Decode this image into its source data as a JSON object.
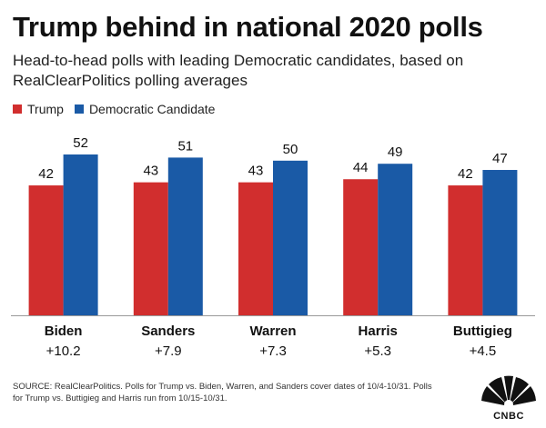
{
  "title": "Trump behind in national 2020 polls",
  "subtitle": "Head-to-head polls with leading Democratic candidates, based on RealClearPolitics polling averages",
  "legend": [
    {
      "label": "Trump",
      "color": "#d12e2e"
    },
    {
      "label": "Democratic Candidate",
      "color": "#1a5aa6"
    }
  ],
  "chart_data": {
    "type": "bar",
    "categories": [
      "Biden",
      "Sanders",
      "Warren",
      "Harris",
      "Buttigieg"
    ],
    "margins": [
      "+10.2",
      "+7.9",
      "+7.3",
      "+5.3",
      "+4.5"
    ],
    "series": [
      {
        "name": "Trump",
        "color": "#d12e2e",
        "values": [
          42,
          43,
          43,
          44,
          42
        ]
      },
      {
        "name": "Democratic Candidate",
        "color": "#1a5aa6",
        "values": [
          52,
          51,
          50,
          49,
          47
        ]
      }
    ],
    "ylim": [
      0,
      52
    ],
    "grid": false,
    "legend_position": "top-left"
  },
  "footer": "SOURCE: RealClearPolitics. Polls for Trump vs. Biden, Warren, and Sanders cover dates of 10/4-10/31. Polls for Trump vs. Buttigieg and Harris run from 10/15-10/31.",
  "logo": {
    "text": "CNBC",
    "icon": "cnbc-peacock-icon"
  }
}
